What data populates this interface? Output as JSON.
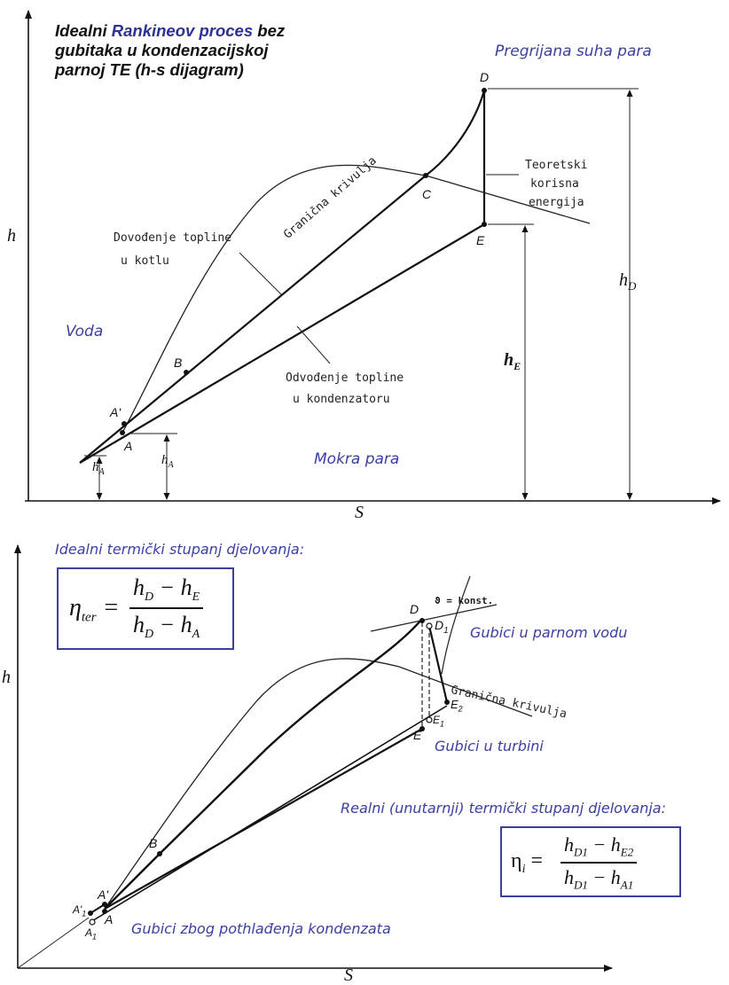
{
  "top": {
    "title_lines": [
      "Idealni",
      "Rankineov proces",
      "bez",
      "gubitaka u kondenzacijskoj",
      "parnoj TE (h-s dijagram)"
    ],
    "axis_h": "h",
    "axis_s": "S",
    "labels": {
      "voda": "Voda",
      "mokra_para": "Mokra para",
      "pregrijana": "Pregrijana suha para",
      "granicna": "Granična krivulja",
      "dovodenje_1": "Dovođenje topline",
      "dovodenje_2": "u kotlu",
      "odvodenje_1": "Odvođenje topline",
      "odvodenje_2": "u kondenzatoru",
      "teoretski_1": "Teoretski",
      "teoretski_2": "korisna",
      "teoretski_3": "energija"
    },
    "points": {
      "D": "D",
      "C": "C",
      "E": "E",
      "B": "B",
      "A1": "A'",
      "A": "A"
    },
    "dims": {
      "hD": "h",
      "hD_sub": "D",
      "hE": "h",
      "hE_sub": "E",
      "hA": "h",
      "hA_sub": "A",
      "hA2": "h",
      "hA2_sub": "A"
    }
  },
  "bottom": {
    "axis_h": "h",
    "axis_s": "S",
    "ideal_caption": "Idealni termički stupanj djelovanja:",
    "real_caption": "Realni (unutarnji) termički stupanj djelovanja:",
    "ideal_formula": {
      "lhs": "η",
      "lhs_sub": "ter",
      "num_a": "h",
      "num_a_sub": "D",
      "num_b": "h",
      "num_b_sub": "E",
      "den_a": "h",
      "den_a_sub": "D",
      "den_b": "h",
      "den_b_sub": "A"
    },
    "real_formula": {
      "lhs": "η",
      "lhs_sub": "i",
      "num_a": "h",
      "num_a_sub": "D1",
      "num_b": "h",
      "num_b_sub": "E2",
      "den_a": "h",
      "den_a_sub": "D1",
      "den_b": "h",
      "den_b_sub": "A1"
    },
    "labels": {
      "gubici_vod": "Gubici u parnom vodu",
      "gubici_turbina": "Gubici u turbini",
      "gubici_pothl": "Gubici zbog pothlađenja kondenzata",
      "granicna": "Granična krivulja",
      "konst": "ϑ = konst."
    },
    "points": {
      "D": "D",
      "D1": "D",
      "D1_sub": "1",
      "E": "E",
      "E1": "E",
      "E1_sub": "1",
      "E2": "E",
      "E2_sub": "2",
      "B": "B",
      "A1": "A'",
      "A": "A",
      "A1s": "A'",
      "A1s_sub": "1",
      "A1b": "A",
      "A1b_sub": "1"
    }
  }
}
